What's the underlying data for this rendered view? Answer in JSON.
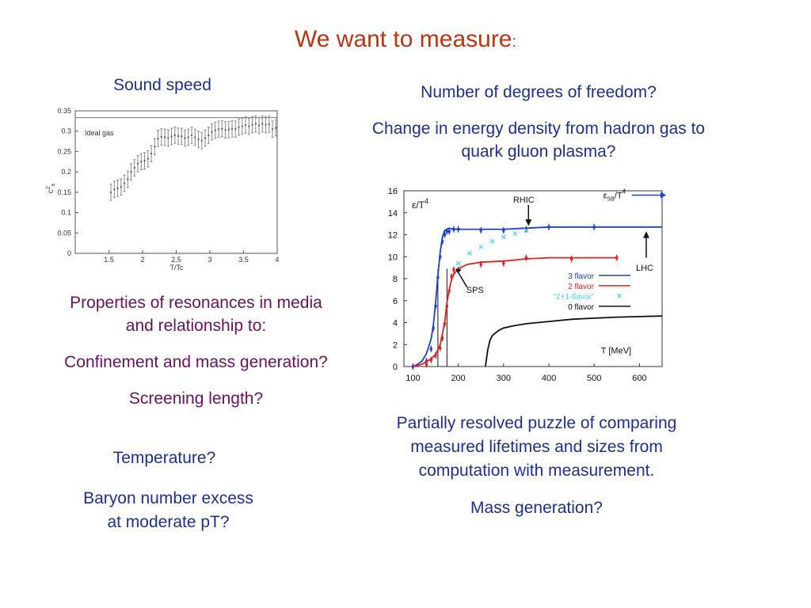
{
  "title": {
    "main": "We want to measure",
    "colon": ":"
  },
  "left": {
    "sound_speed": "Sound speed",
    "resonances_1": "Properties of resonances in media",
    "resonances_2": "and relationship to:",
    "confinement": "Confinement and mass generation?",
    "screening": "Screening length?",
    "temperature": "Temperature?",
    "baryon_1": "Baryon number excess",
    "baryon_2": "at moderate pT?"
  },
  "right": {
    "dof": "Number of degrees of freedom?",
    "energy_1": "Change in energy density from hadron gas to",
    "energy_2": "quark gluon plasma?",
    "puzzle_1": "Partially resolved puzzle of comparing",
    "puzzle_2": "measured lifetimes and sizes from",
    "puzzle_3": "computation with measurement.",
    "mass": "Mass generation?"
  },
  "colors": {
    "title": "#c0330e",
    "navy": "#1f2f8f",
    "purple": "#6b1060"
  },
  "chart_data": [
    {
      "type": "scatter",
      "xlabel": "T/Tc",
      "ylabel": "c_s^2",
      "xlim": [
        1,
        4
      ],
      "ylim": [
        0,
        0.35
      ],
      "xticks": [
        "1.5",
        "2",
        "2.5",
        "3",
        "3.5",
        "4"
      ],
      "xtick_values": [
        1.5,
        2,
        2.5,
        3,
        3.5,
        4
      ],
      "yticks": [
        "0",
        "0.05",
        "0.1",
        "0.15",
        "0.2",
        "0.25",
        "0.3",
        "0.35"
      ],
      "ytick_values": [
        0,
        0.05,
        0.1,
        0.15,
        0.2,
        0.25,
        0.3,
        0.35
      ],
      "reference_line": {
        "label": "Ideal gas",
        "y": 0.3333
      },
      "x": [
        1.53,
        1.58,
        1.63,
        1.68,
        1.73,
        1.78,
        1.83,
        1.88,
        1.93,
        1.98,
        2.03,
        2.08,
        2.13,
        2.18,
        2.23,
        2.28,
        2.33,
        2.38,
        2.43,
        2.48,
        2.53,
        2.58,
        2.63,
        2.68,
        2.73,
        2.78,
        2.83,
        2.88,
        2.93,
        2.98,
        3.03,
        3.08,
        3.13,
        3.18,
        3.23,
        3.28,
        3.33,
        3.38,
        3.43,
        3.48,
        3.53,
        3.58,
        3.63,
        3.68,
        3.73,
        3.78,
        3.83,
        3.88,
        3.93,
        3.98
      ],
      "y": [
        0.15,
        0.157,
        0.16,
        0.163,
        0.172,
        0.182,
        0.2,
        0.21,
        0.22,
        0.225,
        0.227,
        0.232,
        0.245,
        0.262,
        0.282,
        0.286,
        0.285,
        0.283,
        0.287,
        0.29,
        0.288,
        0.287,
        0.283,
        0.285,
        0.29,
        0.285,
        0.28,
        0.277,
        0.283,
        0.29,
        0.298,
        0.302,
        0.305,
        0.306,
        0.303,
        0.304,
        0.306,
        0.305,
        0.31,
        0.312,
        0.315,
        0.312,
        0.316,
        0.318,
        0.314,
        0.318,
        0.316,
        0.317,
        0.305,
        0.308
      ],
      "error": 0.02
    },
    {
      "type": "line",
      "ylabel": "ε/T4",
      "xlabel": "T [MeV]",
      "xlim": [
        80,
        650
      ],
      "ylim": [
        0,
        16
      ],
      "xticks": [
        "100",
        "200",
        "300",
        "400",
        "500",
        "600"
      ],
      "xtick_values": [
        100,
        200,
        300,
        400,
        500,
        600
      ],
      "yticks": [
        "0",
        "2",
        "4",
        "6",
        "8",
        "10",
        "12",
        "14",
        "16"
      ],
      "ytick_values": [
        0,
        2,
        4,
        6,
        8,
        10,
        12,
        14,
        16
      ],
      "annotations": {
        "rhic": "RHIC",
        "lhc": "LHC",
        "sps": "SPS",
        "esb": "εSB/T4"
      },
      "vlines": [
        155,
        175
      ],
      "esb_y": 15.6,
      "series": [
        {
          "name": "3 flavor",
          "color": "#1f3fd0",
          "style": "solid",
          "x": [
            100,
            110,
            120,
            130,
            140,
            145,
            150,
            155,
            160,
            165,
            170,
            175,
            180,
            190,
            200,
            220,
            250,
            300,
            350,
            400,
            500,
            550,
            650
          ],
          "y": [
            0,
            0.2,
            0.5,
            1.2,
            2.5,
            3.8,
            5.8,
            8.3,
            10.4,
            11.8,
            12.4,
            12.5,
            12.6,
            12.5,
            12.5,
            12.5,
            12.5,
            12.5,
            12.6,
            12.7,
            12.7,
            12.7,
            12.7
          ],
          "marker_x": [
            100,
            130,
            140,
            145,
            150,
            155,
            160,
            165,
            170,
            175,
            180,
            190,
            200,
            250,
            300,
            350,
            400,
            500
          ],
          "marker_y": [
            0,
            0.5,
            1.6,
            3.5,
            5.5,
            8.1,
            10.0,
            11.4,
            12.0,
            12.3,
            12.3,
            12.5,
            12.5,
            12.4,
            12.4,
            12.5,
            12.7,
            12.7
          ]
        },
        {
          "name": "2 flavor",
          "color": "#e02020",
          "style": "solid",
          "x": [
            100,
            120,
            140,
            150,
            160,
            170,
            175,
            180,
            185,
            190,
            200,
            220,
            250,
            300,
            350,
            400,
            450,
            500,
            550
          ],
          "y": [
            0,
            0.2,
            0.7,
            1.1,
            2.0,
            4.0,
            5.8,
            7.0,
            7.9,
            8.4,
            8.9,
            9.3,
            9.5,
            9.6,
            9.8,
            9.9,
            9.9,
            9.9,
            9.9
          ],
          "marker_x": [
            130,
            140,
            150,
            160,
            165,
            170,
            175,
            180,
            185,
            190,
            200,
            250,
            300,
            350,
            450,
            550
          ],
          "marker_y": [
            0.2,
            0.6,
            1.0,
            1.7,
            2.6,
            3.9,
            5.5,
            6.9,
            8.2,
            8.8,
            8.8,
            9.3,
            9.4,
            9.9,
            9.8,
            9.9
          ]
        },
        {
          "name": "“2+1-flavor”",
          "color": "#40d8f0",
          "style": "marker",
          "x": [
            200,
            225,
            250,
            275,
            300,
            325,
            350
          ],
          "y": [
            9.4,
            10.3,
            10.9,
            11.4,
            11.8,
            12.1,
            12.4
          ]
        },
        {
          "name": "0 flavor",
          "color": "#111111",
          "style": "solid",
          "x": [
            260,
            265,
            270,
            275,
            280,
            290,
            300,
            320,
            350,
            400,
            450,
            500,
            550,
            600,
            650
          ],
          "y": [
            0,
            1.5,
            2.4,
            2.8,
            3.0,
            3.3,
            3.5,
            3.7,
            3.9,
            4.1,
            4.3,
            4.4,
            4.5,
            4.55,
            4.6
          ]
        }
      ]
    }
  ]
}
